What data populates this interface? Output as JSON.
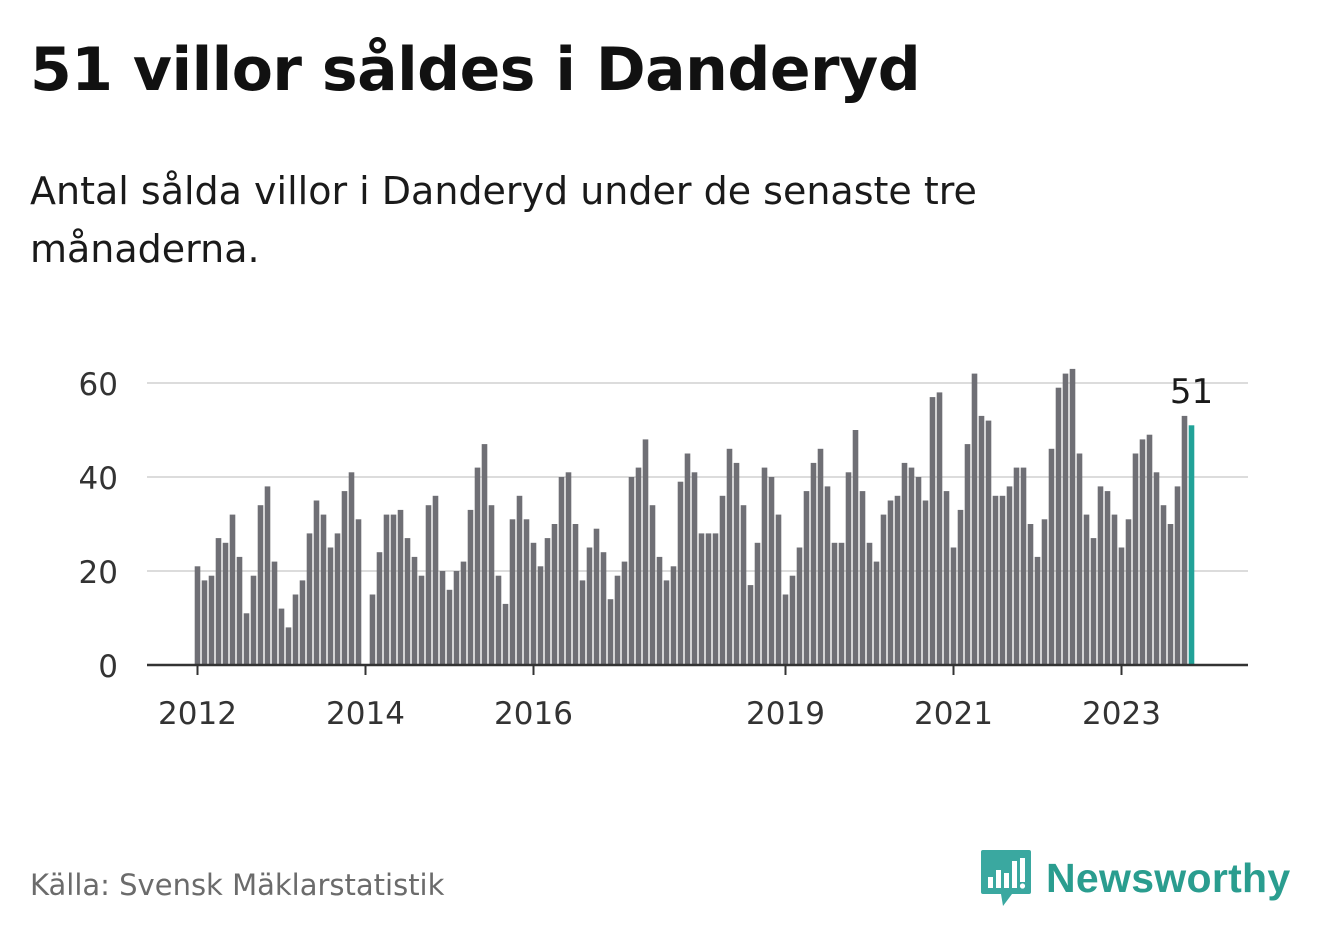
{
  "title": "51 villor såldes i Danderyd",
  "subtitle": "Antal sålda villor i Danderyd under de senaste tre månaderna.",
  "source": "Källa: Svensk Mäklarstatistik",
  "brand": {
    "name": "Newsworthy",
    "icon": "bar-chart-speech-bubble-icon"
  },
  "colors": {
    "bar": "#6f6f75",
    "highlight": "#21a298",
    "grid": "#dcdcdc",
    "axis": "#333333",
    "brand": "#2a9d8f"
  },
  "chart_data": {
    "type": "bar",
    "title": "51 villor såldes i Danderyd",
    "xlabel": "",
    "ylabel": "",
    "ylim": [
      0,
      65
    ],
    "yticks": [
      0,
      20,
      40,
      60
    ],
    "ytick_labels": [
      "0",
      "20",
      "40",
      "60"
    ],
    "xticks": [
      {
        "label": "2012",
        "index": 0
      },
      {
        "label": "2014",
        "index": 24
      },
      {
        "label": "2016",
        "index": 48
      },
      {
        "label": "2019",
        "index": 84
      },
      {
        "label": "2021",
        "index": 108
      },
      {
        "label": "2023",
        "index": 132
      }
    ],
    "annotation": {
      "label": "51",
      "index": 142
    },
    "highlight_index": 142,
    "values": [
      21,
      18,
      19,
      27,
      26,
      32,
      23,
      11,
      19,
      34,
      38,
      22,
      12,
      8,
      15,
      18,
      28,
      35,
      32,
      25,
      28,
      37,
      41,
      31,
      0,
      15,
      24,
      32,
      32,
      33,
      27,
      23,
      19,
      34,
      36,
      20,
      16,
      20,
      22,
      33,
      42,
      47,
      34,
      19,
      13,
      31,
      36,
      31,
      26,
      21,
      27,
      30,
      40,
      41,
      30,
      18,
      25,
      29,
      24,
      14,
      19,
      22,
      40,
      42,
      48,
      34,
      23,
      18,
      21,
      39,
      45,
      41,
      28,
      28,
      28,
      36,
      46,
      43,
      34,
      17,
      26,
      42,
      40,
      32,
      15,
      19,
      25,
      37,
      43,
      46,
      38,
      26,
      26,
      41,
      50,
      37,
      26,
      22,
      32,
      35,
      36,
      43,
      42,
      40,
      35,
      57,
      58,
      37,
      25,
      33,
      47,
      62,
      53,
      52,
      36,
      36,
      38,
      42,
      42,
      30,
      23,
      31,
      46,
      59,
      62,
      63,
      45,
      32,
      27,
      38,
      37,
      32,
      25,
      31,
      45,
      48,
      49,
      41,
      34,
      30,
      38,
      53,
      51
    ]
  }
}
